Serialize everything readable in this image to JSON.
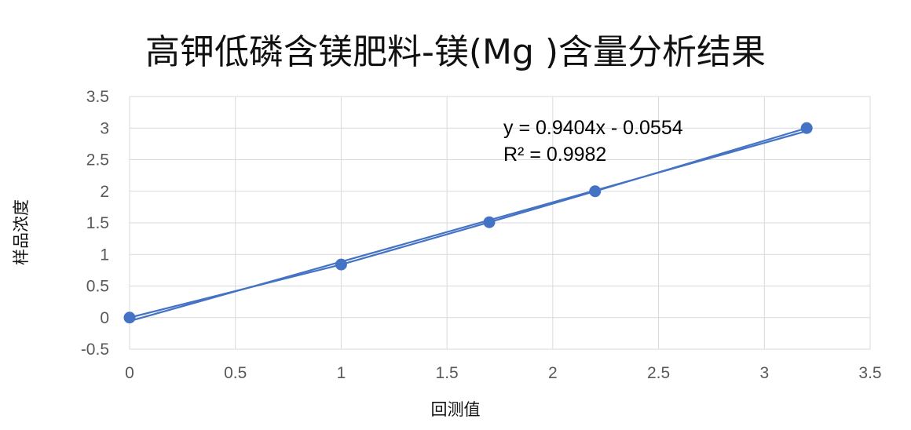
{
  "colors": {
    "series": "#4472C4",
    "grid": "#D9D9D9",
    "text": "#595959"
  },
  "chart_data": {
    "type": "scatter",
    "title": "高钾低磷含镁肥料-镁(Mg )含量分析结果",
    "xlabel": "回测值",
    "ylabel": "样品浓度",
    "xlim": [
      0,
      3.5
    ],
    "ylim": [
      -0.5,
      3.5
    ],
    "xticks": [
      "0",
      "0.5",
      "1",
      "1.5",
      "2",
      "2.5",
      "3",
      "3.5"
    ],
    "yticks": [
      "-0.5",
      "0",
      "0.5",
      "1",
      "1.5",
      "2",
      "2.5",
      "3",
      "3.5"
    ],
    "grid": true,
    "series": [
      {
        "x": [
          0,
          1,
          1.7,
          2.2,
          3.2
        ],
        "y": [
          0,
          0.84,
          1.51,
          2.0,
          3.0
        ],
        "lines": true,
        "markers": true
      }
    ],
    "trendline": {
      "slope": 0.9404,
      "intercept": -0.0554,
      "x_range": [
        0,
        3.2
      ]
    },
    "annotations": {
      "equation": "y = 0.9404x - 0.0554",
      "r_squared": "R² = 0.9982"
    }
  }
}
